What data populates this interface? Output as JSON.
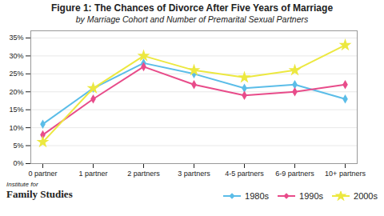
{
  "chart_data": {
    "type": "line",
    "title": "Figure 1: The Chances of Divorce After Five Years of Marriage",
    "subtitle": "by Marriage Cohort and Number of Premarital Sexual Partners",
    "annotations": [
      "Institute for",
      "Family Studies"
    ],
    "categories": [
      "0 partner",
      "1 partner",
      "2 partners",
      "3 partners",
      "4-5 partners",
      "6-9 partners",
      "10+ partners"
    ],
    "series": [
      {
        "name": "1980s",
        "color": "#5bbde8",
        "marker": "diamond",
        "values": [
          11,
          21,
          28,
          25,
          21,
          22,
          18
        ]
      },
      {
        "name": "1990s",
        "color": "#e84c8a",
        "marker": "diamond",
        "values": [
          8,
          18,
          27,
          22,
          19,
          20,
          22
        ]
      },
      {
        "name": "2000s",
        "color": "#ece840",
        "marker": "star",
        "values": [
          6,
          21,
          30,
          26,
          24,
          26,
          33
        ]
      }
    ],
    "ylim": [
      0,
      37
    ],
    "yticks": [
      {
        "value": 0,
        "label": "0%"
      },
      {
        "value": 5,
        "label": "5%"
      },
      {
        "value": 10,
        "label": "10%"
      },
      {
        "value": 15,
        "label": "15%"
      },
      {
        "value": 20,
        "label": "20%"
      },
      {
        "value": 25,
        "label": "25%"
      },
      {
        "value": 30,
        "label": "30%"
      },
      {
        "value": 35,
        "label": "35%"
      }
    ],
    "grid": true,
    "legend": "lower right"
  }
}
